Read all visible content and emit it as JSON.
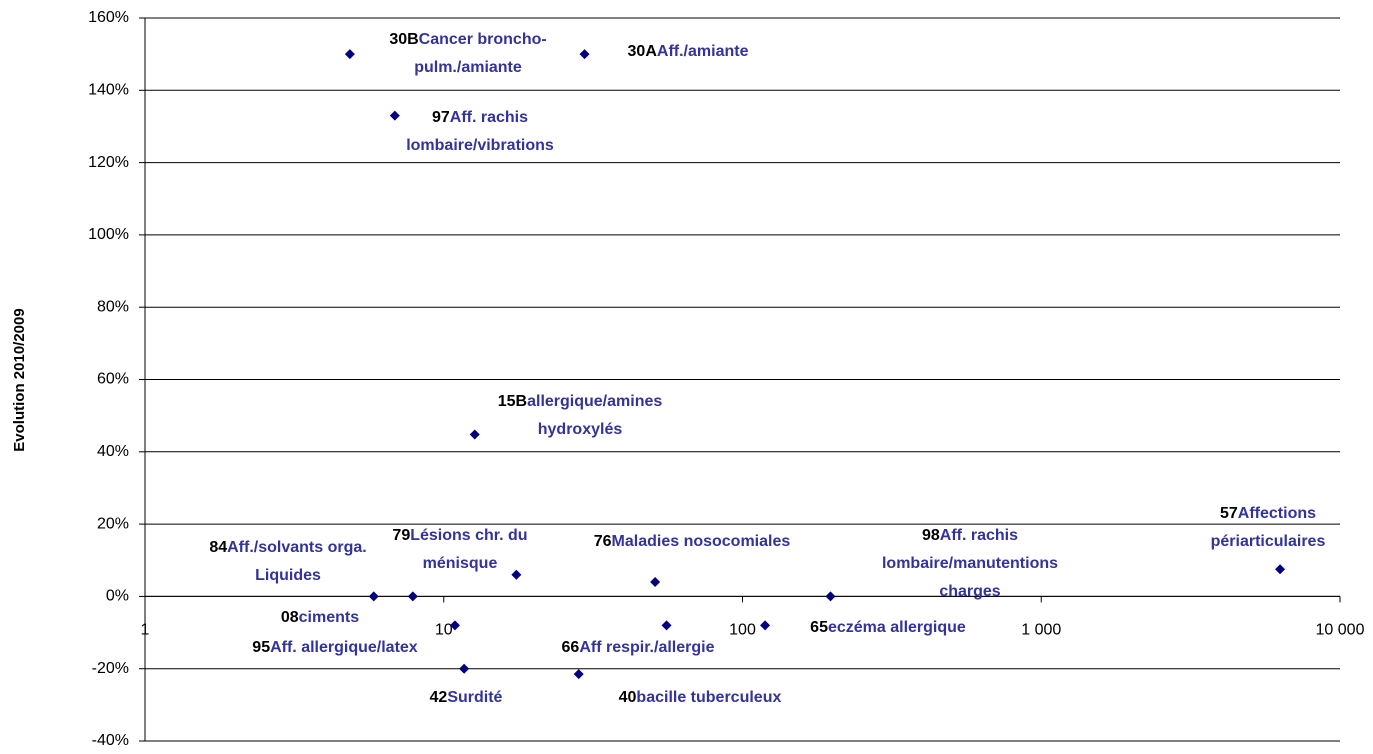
{
  "chart_data": {
    "type": "scatter",
    "y_label": "Evolution 2010/2009",
    "xscale": "log",
    "grid": true,
    "color": "#000080",
    "code_color": "#000000",
    "name_color": "#333399",
    "xlim": [
      1,
      10000
    ],
    "xticks": [
      1,
      10,
      100,
      {
        "value": 1000,
        "label": "1 000"
      },
      {
        "value": 10000,
        "label": "10 000"
      }
    ],
    "ylim": [
      -40,
      160
    ],
    "yticks": [
      {
        "value": -40,
        "label": "-40%"
      },
      {
        "value": -20,
        "label": "-20%"
      },
      {
        "value": 0,
        "label": "0%"
      },
      {
        "value": 20,
        "label": "20%"
      },
      {
        "value": 40,
        "label": "40%"
      },
      {
        "value": 60,
        "label": "60%"
      },
      {
        "value": 80,
        "label": "80%"
      },
      {
        "value": 100,
        "label": "100%"
      },
      {
        "value": 120,
        "label": "120%"
      },
      {
        "value": 140,
        "label": "140%"
      },
      {
        "value": 160,
        "label": "160%"
      }
    ],
    "x": [
      4.85,
      29.6,
      6.86,
      12.7,
      17.5,
      51,
      197,
      6300,
      5.83,
      7.88,
      10.9,
      55.7,
      119,
      11.7,
      28.3
    ],
    "values": [
      150,
      150,
      133,
      44.8,
      6,
      4,
      0,
      7.5,
      0,
      0,
      -8,
      -8,
      -8,
      -20,
      -21.5
    ],
    "point_labels": [
      {
        "code": "30B",
        "name": [
          "Cancer broncho-",
          "pulm./amiante"
        ]
      },
      {
        "code": "30A",
        "name": [
          "Aff./amiante"
        ]
      },
      {
        "code": "97",
        "name": [
          "Aff. rachis",
          "lombaire/vibrations"
        ]
      },
      {
        "code": "15B",
        "name": [
          "allergique/amines",
          "hydroxylés"
        ]
      },
      {
        "code": "79",
        "name": [
          "Lésions chr. du",
          "ménisque"
        ]
      },
      {
        "code": "76",
        "name": [
          "Maladies nosocomiales"
        ]
      },
      {
        "code": "98",
        "name": [
          "Aff. rachis",
          "lombaire/manutentions",
          "charges"
        ]
      },
      {
        "code": "57",
        "name": [
          "Affections",
          "périarticulaires"
        ]
      },
      {
        "code": "84",
        "name": [
          "Aff./solvants orga.",
          "Liquides"
        ]
      },
      {
        "code": "08",
        "name": [
          "ciments"
        ]
      },
      {
        "code": "95",
        "name": [
          "Aff. allergique/latex"
        ]
      },
      {
        "code": "66",
        "name": [
          "Aff respir./allergie"
        ]
      },
      {
        "code": "65",
        "name": [
          "eczéma allergique"
        ]
      },
      {
        "code": "42",
        "name": [
          "Surdité"
        ]
      },
      {
        "code": "40",
        "name": [
          "bacille tuberculeux"
        ]
      }
    ]
  }
}
